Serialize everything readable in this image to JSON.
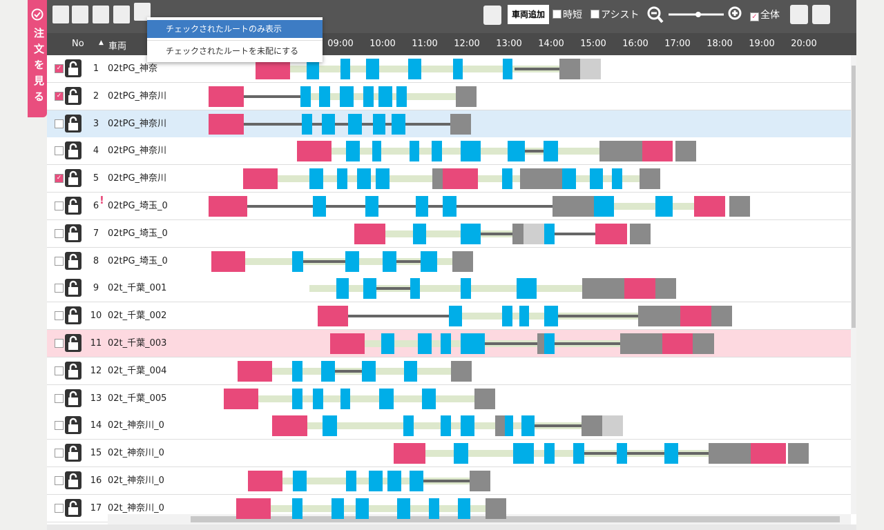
{
  "side_tab": {
    "label": "注文を見る"
  },
  "toolbar": {
    "add_vehicle": "車両追加",
    "options": [
      {
        "label": "時短",
        "checked": false
      },
      {
        "label": "アシスト",
        "checked": false
      },
      {
        "label": "全体",
        "checked": true
      }
    ]
  },
  "menu": {
    "items": [
      "チェックされたルートのみ表示",
      "チェックされたルートを未配にする"
    ]
  },
  "table": {
    "headers": {
      "no": "No",
      "sort": "▲",
      "vehicle": "車両"
    },
    "times": [
      "09:00",
      "10:00",
      "11:00",
      "12:00",
      "13:00",
      "14:00",
      "15:00",
      "16:00",
      "17:00",
      "18:00",
      "19:00",
      "20:00"
    ],
    "rows": [
      {
        "no": 1,
        "vehicle": "02tPG_神奈",
        "checked": true
      },
      {
        "no": 2,
        "vehicle": "02tPG_神奈川",
        "checked": true
      },
      {
        "no": 3,
        "vehicle": "02tPG_神奈川",
        "checked": false
      },
      {
        "no": 4,
        "vehicle": "02tPG_神奈川",
        "checked": false
      },
      {
        "no": 5,
        "vehicle": "02tPG_神奈川",
        "checked": true
      },
      {
        "no": 6,
        "vehicle": "02tPG_埼玉_0",
        "checked": false,
        "alert": "!"
      },
      {
        "no": 7,
        "vehicle": "02tPG_埼玉_0",
        "checked": false
      },
      {
        "no": 8,
        "vehicle": "02tPG_埼玉_0",
        "checked": false
      },
      {
        "no": 9,
        "vehicle": "02t_千葉_001",
        "checked": false
      },
      {
        "no": 10,
        "vehicle": "02t_千葉_002",
        "checked": false
      },
      {
        "no": 11,
        "vehicle": "02t_千葉_003",
        "checked": false
      },
      {
        "no": 12,
        "vehicle": "02t_千葉_004",
        "checked": false
      },
      {
        "no": 13,
        "vehicle": "02t_千葉_005",
        "checked": false
      },
      {
        "no": 14,
        "vehicle": "02t_神奈川_0",
        "checked": false
      },
      {
        "no": 15,
        "vehicle": "02t_神奈川_0",
        "checked": false
      },
      {
        "no": 16,
        "vehicle": "02t_神奈川_0",
        "checked": false
      },
      {
        "no": 17,
        "vehicle": "02t_神奈川_0",
        "checked": false
      }
    ]
  }
}
